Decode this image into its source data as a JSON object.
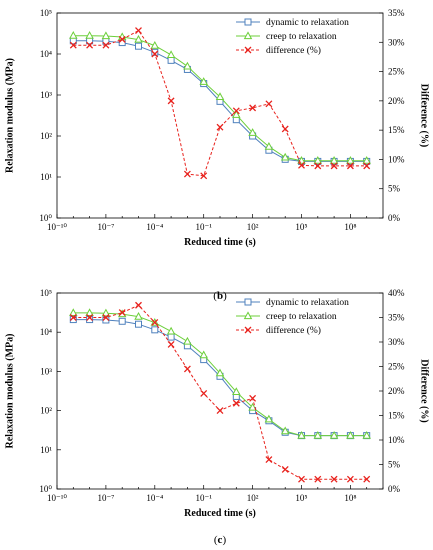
{
  "colors": {
    "dynamic": "#4f81bd",
    "creep": "#6ccf3a",
    "difference": "#e8221d",
    "axis": "#000000"
  },
  "chart_data": [
    {
      "type": "line",
      "panel_label": "b",
      "xlabel": "Reduced time (s)",
      "ylabel": "Relaxation modulus (MPa)",
      "y2label": "Difference (%)",
      "x_scale": "log",
      "y_scale": "log",
      "xlim": [
        1e-10,
        10000000000.0
      ],
      "ylim": [
        1,
        100000
      ],
      "y2lim": [
        0,
        35
      ],
      "x_tick_labels": [
        "10⁻¹⁰",
        "10⁻⁷",
        "10⁻⁴",
        "10⁻¹",
        "10²",
        "10⁵",
        "10⁸"
      ],
      "y_tick_labels": [
        "10⁰",
        "10¹",
        "10²",
        "10³",
        "10⁴",
        "10⁵"
      ],
      "y2_tick_labels": [
        "0%",
        "5%",
        "10%",
        "15%",
        "20%",
        "25%",
        "30%",
        "35%"
      ],
      "grid": false,
      "legend_position": "top-right",
      "x": [
        1e-09,
        1e-08,
        1e-07,
        1e-06,
        1e-05,
        0.0001,
        0.001,
        0.01,
        0.1,
        1,
        10,
        100,
        1000,
        10000,
        100000,
        1000000,
        10000000,
        100000000,
        1000000000
      ],
      "series": [
        {
          "name": "dynamic to relaxation",
          "axis": "left",
          "marker": "square",
          "style": "solid",
          "values": [
            21000,
            21000,
            20500,
            19000,
            15500,
            11000,
            7000,
            4200,
            1900,
            700,
            250,
            100,
            45,
            27,
            24,
            24,
            24,
            24,
            24
          ]
        },
        {
          "name": "creep to relaxation",
          "axis": "left",
          "marker": "triangle",
          "style": "solid",
          "values": [
            28000,
            28000,
            27500,
            26000,
            22500,
            16000,
            9500,
            5000,
            2100,
            900,
            330,
            120,
            55,
            30,
            25,
            25,
            25,
            25,
            25
          ]
        },
        {
          "name": "difference (%)",
          "axis": "right",
          "marker": "x",
          "style": "dashed",
          "values": [
            29.5,
            29.5,
            29.5,
            30.5,
            32,
            28,
            20,
            7.5,
            7.2,
            15.5,
            18.3,
            18.8,
            19.5,
            15.2,
            9,
            8.9,
            8.9,
            8.9,
            8.9
          ]
        }
      ]
    },
    {
      "type": "line",
      "panel_label": "c",
      "xlabel": "Reduced time (s)",
      "ylabel": "Relaxation modulus (MPa)",
      "y2label": "Difference (%)",
      "x_scale": "log",
      "y_scale": "log",
      "xlim": [
        1e-10,
        10000000000.0
      ],
      "ylim": [
        1,
        100000
      ],
      "y2lim": [
        0,
        40
      ],
      "x_tick_labels": [
        "10⁻¹⁰",
        "10⁻⁷",
        "10⁻⁴",
        "10⁻¹",
        "10²",
        "10⁵",
        "10⁸"
      ],
      "y_tick_labels": [
        "10⁰",
        "10¹",
        "10²",
        "10³",
        "10⁴",
        "10⁵"
      ],
      "y2_tick_labels": [
        "0%",
        "5%",
        "10%",
        "15%",
        "20%",
        "25%",
        "30%",
        "35%",
        "40%"
      ],
      "grid": false,
      "legend_position": "top-right",
      "x": [
        1e-09,
        1e-08,
        1e-07,
        1e-06,
        1e-05,
        0.0001,
        0.001,
        0.01,
        0.1,
        1,
        10,
        100,
        1000,
        10000,
        100000,
        1000000,
        10000000,
        100000000,
        1000000000
      ],
      "series": [
        {
          "name": "dynamic to relaxation",
          "axis": "left",
          "marker": "square",
          "style": "solid",
          "values": [
            21000,
            21000,
            20500,
            19000,
            16000,
            11500,
            7500,
            4500,
            2000,
            750,
            230,
            100,
            55,
            28,
            23,
            23,
            23,
            23,
            23
          ]
        },
        {
          "name": "creep to relaxation",
          "axis": "left",
          "marker": "triangle",
          "style": "solid",
          "values": [
            31000,
            31000,
            30500,
            29000,
            25000,
            17500,
            10500,
            5800,
            2600,
            900,
            300,
            120,
            60,
            30,
            23,
            23,
            23,
            23,
            23
          ]
        },
        {
          "name": "difference (%)",
          "axis": "right",
          "marker": "x",
          "style": "dashed",
          "values": [
            35,
            35,
            35,
            36,
            37.5,
            34,
            29.5,
            24.5,
            19.5,
            16,
            17.5,
            18.5,
            6,
            4,
            2,
            2,
            2,
            2,
            2
          ]
        }
      ]
    }
  ]
}
